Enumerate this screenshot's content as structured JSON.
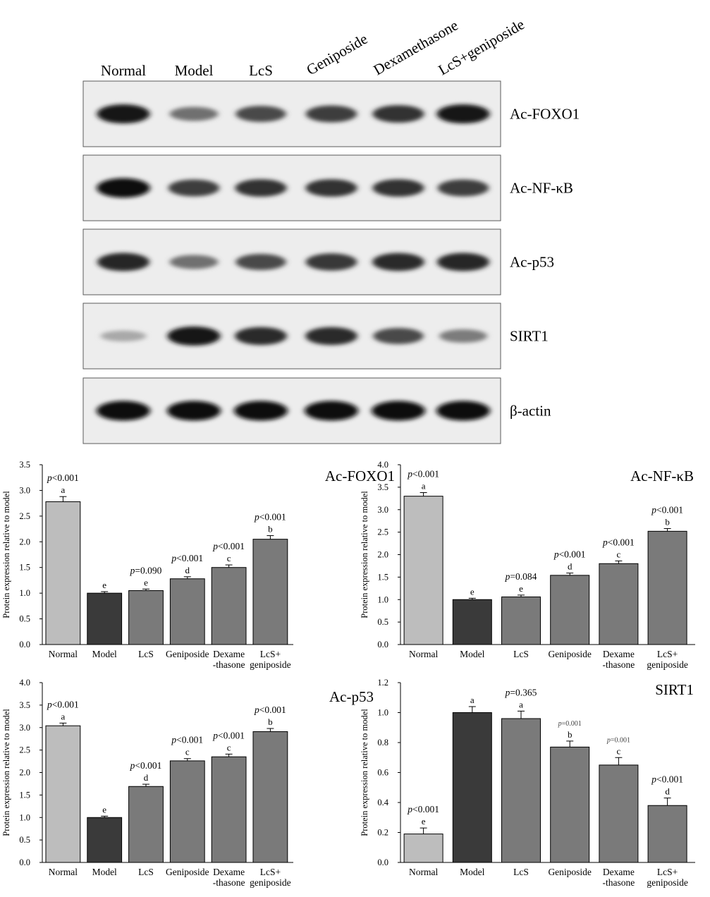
{
  "blot": {
    "lanes": [
      "Normal",
      "Model",
      "LcS",
      "Geniposide",
      "Dexamethasone",
      "LcS+geniposide"
    ],
    "panels": [
      {
        "label": "Ac-FOXO1",
        "intensity": [
          0.95,
          0.55,
          0.72,
          0.78,
          0.82,
          0.95
        ]
      },
      {
        "label": "Ac-NF-κB",
        "intensity": [
          0.98,
          0.78,
          0.82,
          0.82,
          0.82,
          0.78
        ]
      },
      {
        "label": "Ac-p53",
        "intensity": [
          0.88,
          0.55,
          0.72,
          0.8,
          0.86,
          0.88
        ]
      },
      {
        "label": "SIRT1",
        "intensity": [
          0.3,
          0.95,
          0.86,
          0.86,
          0.72,
          0.5
        ]
      },
      {
        "label": "β-actin",
        "intensity": [
          1.0,
          1.0,
          1.0,
          1.0,
          1.0,
          1.0
        ]
      }
    ]
  },
  "chart_data": [
    {
      "type": "bar",
      "title": "Ac-FOXO1",
      "ylabel": "Protein expression relative to model",
      "ylim": [
        0,
        3.5
      ],
      "yticks": [
        "0.0",
        "0.5",
        "1.0",
        "1.5",
        "2.0",
        "2.5",
        "3.0",
        "3.5"
      ],
      "categories": [
        [
          "Normal"
        ],
        [
          "Model"
        ],
        [
          "LcS"
        ],
        [
          "Geniposide"
        ],
        [
          "Dexame",
          "-thasone"
        ],
        [
          "LcS+",
          "geniposide"
        ]
      ],
      "values": [
        2.78,
        1.0,
        1.05,
        1.28,
        1.5,
        2.05
      ],
      "errors": [
        0.1,
        0.03,
        0.03,
        0.04,
        0.05,
        0.07
      ],
      "letters": [
        "a",
        "e",
        "e",
        "d",
        "c",
        "b"
      ],
      "pvalues": [
        [
          "p",
          "<0.001"
        ],
        null,
        [
          "p",
          "=0.090"
        ],
        [
          "p",
          "<0.001"
        ],
        [
          "p",
          "<0.001"
        ],
        [
          "p",
          "<0.001"
        ]
      ]
    },
    {
      "type": "bar",
      "title": "Ac-NF-κB",
      "ylabel": "Protein expression relative to model",
      "ylim": [
        0,
        4.0
      ],
      "yticks": [
        "0.0",
        "0.5",
        "1.0",
        "1.5",
        "2.0",
        "2.5",
        "3.0",
        "3.5",
        "4.0"
      ],
      "categories": [
        [
          "Normal"
        ],
        [
          "Model"
        ],
        [
          "LcS"
        ],
        [
          "Geniposide"
        ],
        [
          "Dexame",
          "-thasone"
        ],
        [
          "LcS+",
          "geniposide"
        ]
      ],
      "values": [
        3.3,
        1.0,
        1.06,
        1.54,
        1.8,
        2.52
      ],
      "errors": [
        0.08,
        0.03,
        0.04,
        0.05,
        0.06,
        0.06
      ],
      "letters": [
        "a",
        "e",
        "e",
        "d",
        "c",
        "b"
      ],
      "pvalues": [
        [
          "p",
          "<0.001"
        ],
        null,
        [
          "p",
          "=0.084"
        ],
        [
          "p",
          "<0.001"
        ],
        [
          "p",
          "<0.001"
        ],
        [
          "p",
          "<0.001"
        ]
      ]
    },
    {
      "type": "bar",
      "title": "Ac-p53",
      "ylabel": "Protein expression relative to model",
      "ylim": [
        0,
        4.0
      ],
      "yticks": [
        "0.0",
        "0.5",
        "1.0",
        "1.5",
        "2.0",
        "2.5",
        "3.0",
        "3.5",
        "4.0"
      ],
      "categories": [
        [
          "Normal"
        ],
        [
          "Model"
        ],
        [
          "LcS"
        ],
        [
          "Geniposide"
        ],
        [
          "Dexame",
          "-thasone"
        ],
        [
          "LcS+",
          "geniposide"
        ]
      ],
      "values": [
        3.04,
        1.0,
        1.69,
        2.26,
        2.35,
        2.91
      ],
      "errors": [
        0.06,
        0.03,
        0.05,
        0.05,
        0.06,
        0.07
      ],
      "letters": [
        "a",
        "e",
        "d",
        "c",
        "c",
        "b"
      ],
      "pvalues": [
        [
          "p",
          "<0.001"
        ],
        null,
        [
          "p",
          "<0.001"
        ],
        [
          "p",
          "<0.001"
        ],
        [
          "p",
          "<0.001"
        ],
        [
          "p",
          "<0.001"
        ]
      ]
    },
    {
      "type": "bar",
      "title": "SIRT1",
      "ylabel": "Protein expression relative to model",
      "ylim": [
        0,
        1.2
      ],
      "yticks": [
        "0.0",
        "0.2",
        "0.4",
        "0.6",
        "0.8",
        "1.0",
        "1.2"
      ],
      "categories": [
        [
          "Normal"
        ],
        [
          "Model"
        ],
        [
          "LcS"
        ],
        [
          "Geniposide"
        ],
        [
          "Dexame",
          "-thasone"
        ],
        [
          "LcS+",
          "geniposide"
        ]
      ],
      "values": [
        0.19,
        1.0,
        0.96,
        0.77,
        0.65,
        0.38
      ],
      "errors": [
        0.04,
        0.04,
        0.05,
        0.04,
        0.05,
        0.05
      ],
      "letters": [
        "e",
        "a",
        "a",
        "b",
        "c",
        "d"
      ],
      "pvalues": [
        [
          "p",
          "<0.001"
        ],
        null,
        [
          "p",
          "=0.365"
        ],
        [
          "p",
          "=0.001"
        ],
        [
          "p",
          "=0.001"
        ],
        [
          "p",
          "<0.001"
        ]
      ]
    }
  ],
  "colors": {
    "normal_bar": "#bdbdbd",
    "model_bar": "#3a3a3a",
    "treatment_bar": "#7a7a7a",
    "axis": "#000000"
  }
}
